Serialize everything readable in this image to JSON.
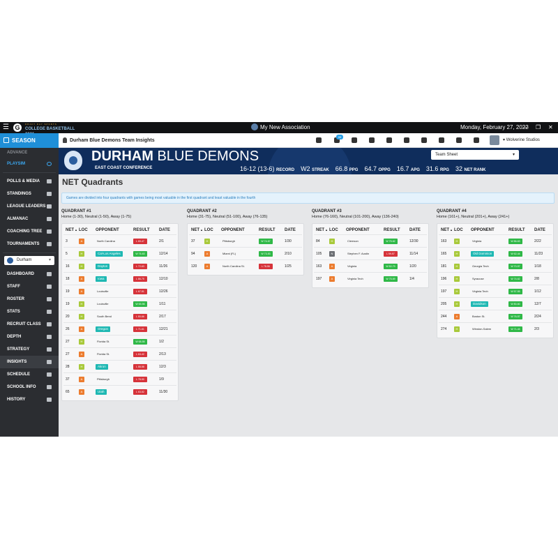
{
  "window": {
    "brand_sub": "DRAFT DAY SPORTS",
    "brand_main": "COLLEGE BASKETBALL 2021",
    "association": "My New Association",
    "date": "Monday, February 27, 2022",
    "controls": [
      "—",
      "❐",
      "✕"
    ]
  },
  "sidebar": {
    "section": "SEASON",
    "top_items": [
      {
        "label": "ADVANCE",
        "name": "nav-advance",
        "style": "dim"
      },
      {
        "label": "PLAYSIM",
        "name": "nav-playsim",
        "style": "playsim"
      }
    ],
    "items1": [
      {
        "label": "POLLS & MEDIA",
        "name": "nav-polls-media"
      },
      {
        "label": "STANDINGS",
        "name": "nav-standings"
      },
      {
        "label": "LEAGUE LEADERS",
        "name": "nav-league-leaders"
      },
      {
        "label": "ALMANAC",
        "name": "nav-almanac"
      },
      {
        "label": "COACHING TREE",
        "name": "nav-coaching-tree"
      },
      {
        "label": "TOURNAMENTS",
        "name": "nav-tournaments"
      }
    ],
    "team_select": "Durham",
    "items2": [
      {
        "label": "DASHBOARD",
        "name": "nav-dashboard"
      },
      {
        "label": "STAFF",
        "name": "nav-staff"
      },
      {
        "label": "ROSTER",
        "name": "nav-roster"
      },
      {
        "label": "STATS",
        "name": "nav-stats"
      },
      {
        "label": "RECRUIT CLASS",
        "name": "nav-recruit-class"
      },
      {
        "label": "DEPTH",
        "name": "nav-depth"
      },
      {
        "label": "STRATEGY",
        "name": "nav-strategy"
      },
      {
        "label": "INSIGHTS",
        "name": "nav-insights",
        "active": true
      },
      {
        "label": "SCHEDULE",
        "name": "nav-schedule"
      },
      {
        "label": "SCHOOL INFO",
        "name": "nav-school-info"
      },
      {
        "label": "HISTORY",
        "name": "nav-history"
      }
    ]
  },
  "header": {
    "title": "Durham Blue Demons Team Insights",
    "mail_count": "99",
    "studio": "Wolverine Studios"
  },
  "banner": {
    "team_bold": "DURHAM",
    "team_rest": "BLUE DEMONS",
    "conference": "EAST COAST CONFERENCE",
    "sheet_select": "Team Sheet",
    "stats": [
      {
        "value": "16-12 (13-6)",
        "label": "RECORD"
      },
      {
        "value": "W2",
        "label": "STREAK"
      },
      {
        "value": "66.8",
        "label": "PPG"
      },
      {
        "value": "64.7",
        "label": "OPPG"
      },
      {
        "value": "16.7",
        "label": "APG"
      },
      {
        "value": "31.6",
        "label": "RPG"
      },
      {
        "value": "32",
        "label": "NET RANK"
      }
    ]
  },
  "main": {
    "title": "NET Quadrants",
    "info": "Games are divided into four quadrants with games being most valuable in the first quadrant and least valuable in the fourth",
    "columns": [
      "NET",
      "LOC",
      "OPPONENT",
      "RESULT",
      "DATE"
    ],
    "sort_icon": "▲",
    "quadrants": [
      {
        "title": "QUADRANT #1",
        "subtitle": "Home (1-30), Neutral (1-50), Away (1-75)",
        "rows": [
          {
            "net": "3",
            "loc": "A",
            "opp": "North Carolina",
            "hl": false,
            "res": "L 69-47",
            "wl": "L",
            "date": "2/1"
          },
          {
            "net": "5",
            "loc": "H",
            "opp": "Cal-Los Angeles",
            "hl": true,
            "res": "W 76-63",
            "wl": "W",
            "date": "12/14"
          },
          {
            "net": "16",
            "loc": "H",
            "opp": "Dayton",
            "hl": true,
            "res": "L 72-63",
            "wl": "L",
            "date": "11/26"
          },
          {
            "net": "18",
            "loc": "A",
            "opp": "Iowa",
            "hl": true,
            "res": "L 86-75",
            "wl": "L",
            "date": "12/10"
          },
          {
            "net": "19",
            "loc": "A",
            "opp": "Louisville",
            "hl": false,
            "res": "L 67-51",
            "wl": "L",
            "date": "12/26"
          },
          {
            "net": "19",
            "loc": "H",
            "opp": "Louisville",
            "hl": false,
            "res": "W 69-56",
            "wl": "W",
            "date": "1/11"
          },
          {
            "net": "20",
            "loc": "H",
            "opp": "South Bend",
            "hl": false,
            "res": "L 80-66",
            "wl": "L",
            "date": "2/17"
          },
          {
            "net": "26",
            "loc": "A",
            "opp": "Oregon",
            "hl": true,
            "res": "L 71-61",
            "wl": "L",
            "date": "12/21"
          },
          {
            "net": "27",
            "loc": "H",
            "opp": "Florida St.",
            "hl": false,
            "res": "W 68-55",
            "wl": "W",
            "date": "1/2"
          },
          {
            "net": "27",
            "loc": "A",
            "opp": "Florida St.",
            "hl": false,
            "res": "L 63-42",
            "wl": "L",
            "date": "2/13"
          },
          {
            "net": "28",
            "loc": "H",
            "opp": "Akron",
            "hl": true,
            "res": "L 88-58",
            "wl": "L",
            "date": "12/3"
          },
          {
            "net": "37",
            "loc": "A",
            "opp": "Pittsburgh",
            "hl": false,
            "res": "L 78-50",
            "wl": "L",
            "date": "1/9"
          },
          {
            "net": "65",
            "loc": "A",
            "opp": "Utah",
            "hl": true,
            "res": "L 63-52",
            "wl": "L",
            "date": "11/30"
          }
        ]
      },
      {
        "title": "QUADRANT #2",
        "subtitle": "Home (31-75), Neutral (51-100), Away (76-135)",
        "rows": [
          {
            "net": "37",
            "loc": "H",
            "opp": "Pittsburgh",
            "hl": false,
            "res": "W 74-67",
            "wl": "W",
            "date": "1/30"
          },
          {
            "net": "94",
            "loc": "A",
            "opp": "Miami (FL)",
            "hl": false,
            "res": "W 73-53",
            "wl": "W",
            "date": "2/10"
          },
          {
            "net": "120",
            "loc": "A",
            "opp": "North Carolina St.",
            "hl": false,
            "res": "L 78-56",
            "wl": "L",
            "date": "1/25"
          }
        ]
      },
      {
        "title": "QUADRANT #3",
        "subtitle": "Home (76-160), Neutral (101-200), Away (136-240)",
        "rows": [
          {
            "net": "84",
            "loc": "H",
            "opp": "Clemson",
            "hl": false,
            "res": "W 75-62",
            "wl": "W",
            "date": "12/30"
          },
          {
            "net": "105",
            "loc": "N",
            "opp": "Stephen F. Austin",
            "hl": false,
            "res": "L 59-57",
            "wl": "L",
            "date": "11/14"
          },
          {
            "net": "163",
            "loc": "A",
            "opp": "Virginia",
            "hl": false,
            "res": "W 82-79",
            "wl": "W",
            "date": "1/20"
          },
          {
            "net": "197",
            "loc": "A",
            "opp": "Virginia Tech",
            "hl": false,
            "res": "W 75-69",
            "wl": "W",
            "date": "1/4"
          }
        ]
      },
      {
        "title": "QUADRANT #4",
        "subtitle": "Home (161+), Neutral (201+), Away (241+)",
        "rows": [
          {
            "net": "163",
            "loc": "H",
            "opp": "Virginia",
            "hl": false,
            "res": "W 86-63",
            "wl": "W",
            "date": "2/22"
          },
          {
            "net": "165",
            "loc": "H",
            "opp": "Old Dominion",
            "hl": true,
            "res": "W 62-44",
            "wl": "W",
            "date": "11/23"
          },
          {
            "net": "181",
            "loc": "H",
            "opp": "Georgia Tech",
            "hl": false,
            "res": "W 70-57",
            "wl": "W",
            "date": "1/18"
          },
          {
            "net": "196",
            "loc": "H",
            "opp": "Syracuse",
            "hl": false,
            "res": "W 74-62",
            "wl": "W",
            "date": "2/8"
          },
          {
            "net": "197",
            "loc": "H",
            "opp": "Virginia Tech",
            "hl": false,
            "res": "W 57-55",
            "wl": "W",
            "date": "1/12"
          },
          {
            "net": "205",
            "loc": "H",
            "opp": "Davidson",
            "hl": true,
            "res": "W 80-60",
            "wl": "W",
            "date": "12/7"
          },
          {
            "net": "244",
            "loc": "A",
            "opp": "Boston St.",
            "hl": false,
            "res": "W 76-57",
            "wl": "W",
            "date": "2/24"
          },
          {
            "net": "274",
            "loc": "H",
            "opp": "Winston-Salem",
            "hl": false,
            "res": "W 71-44",
            "wl": "W",
            "date": "2/3"
          }
        ]
      }
    ]
  },
  "colors": {
    "accent": "#1f8fd8",
    "banner": "#0f2d5c",
    "win": "#2fb847",
    "loss": "#d6333a",
    "home": "#a8c93a",
    "away": "#ec7c2f",
    "neutral": "#6b6e73",
    "highlight": "#1fb8b3"
  }
}
